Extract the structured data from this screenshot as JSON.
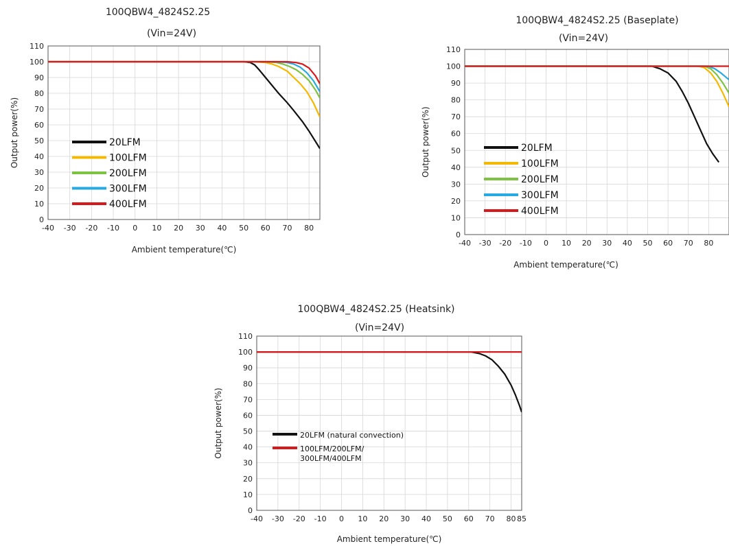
{
  "chart_data": [
    {
      "type": "line",
      "title": "100QBW4_4824S2.25",
      "subtitle": "(Vin=24V)",
      "xlabel": "Ambient temperature(℃)",
      "ylabel": "Output power(%)",
      "xlim": [
        -40,
        85
      ],
      "ylim": [
        0,
        110
      ],
      "xticks": [
        "-40",
        "-30",
        "-20",
        "-10",
        "0",
        "10",
        "20",
        "30",
        "40",
        "50",
        "60",
        "70",
        "80"
      ],
      "yticks": [
        "0",
        "10",
        "20",
        "30",
        "40",
        "50",
        "60",
        "70",
        "80",
        "90",
        "100",
        "110"
      ],
      "grid": true,
      "legend_position": "lower-left",
      "series": [
        {
          "name": "20LFM",
          "color": "#111111",
          "x": [
            -40,
            50,
            53,
            55,
            57,
            60,
            63,
            66,
            70,
            73,
            77,
            80,
            85
          ],
          "y": [
            100,
            100,
            99.5,
            98,
            95,
            90,
            85,
            80,
            74,
            69,
            62,
            56,
            45
          ]
        },
        {
          "name": "100LFM",
          "color": "#f5b800",
          "x": [
            -40,
            55,
            60,
            63,
            66,
            70,
            73,
            76,
            79,
            82,
            85
          ],
          "y": [
            100,
            100,
            99.5,
            98.5,
            97,
            94,
            90,
            86,
            81,
            74,
            65
          ]
        },
        {
          "name": "200LFM",
          "color": "#7dc242",
          "x": [
            -40,
            60,
            65,
            68,
            71,
            74,
            77,
            80,
            83,
            85
          ],
          "y": [
            100,
            100,
            99.5,
            98.5,
            97,
            95,
            92,
            88,
            82,
            77
          ]
        },
        {
          "name": "300LFM",
          "color": "#27a9e1",
          "x": [
            -40,
            65,
            70,
            73,
            76,
            79,
            82,
            85
          ],
          "y": [
            100,
            100,
            99.5,
            98.5,
            96.5,
            93,
            88,
            81
          ]
        },
        {
          "name": "400LFM",
          "color": "#d7191c",
          "x": [
            -40,
            70,
            74,
            77,
            80,
            83,
            85
          ],
          "y": [
            100,
            100,
            99.5,
            98.5,
            96,
            91,
            86
          ]
        }
      ]
    },
    {
      "type": "line",
      "title": "100QBW4_4824S2.25  (Baseplate)",
      "subtitle": "(Vin=24V)",
      "xlabel": "Ambient temperature(℃)",
      "ylabel": "Output power(%)",
      "xlim": [
        -40,
        90
      ],
      "ylim": [
        0,
        110
      ],
      "xticks": [
        "-40",
        "-30",
        "-20",
        "-10",
        "0",
        "10",
        "20",
        "30",
        "40",
        "50",
        "60",
        "70",
        "80"
      ],
      "yticks": [
        "0",
        "10",
        "20",
        "30",
        "40",
        "50",
        "60",
        "70",
        "80",
        "90",
        "100",
        "110"
      ],
      "grid": true,
      "legend_position": "lower-left",
      "series": [
        {
          "name": "20LFM",
          "color": "#111111",
          "x": [
            -40,
            52,
            56,
            60,
            64,
            67,
            70,
            73,
            76,
            79,
            82,
            85
          ],
          "y": [
            100,
            100,
            98.5,
            96,
            91,
            85,
            78,
            70,
            62,
            54,
            48,
            43
          ]
        },
        {
          "name": "100LFM",
          "color": "#f5b800",
          "x": [
            -40,
            75,
            78,
            81,
            84,
            87,
            90
          ],
          "y": [
            100,
            100,
            99,
            96,
            91,
            84,
            76
          ]
        },
        {
          "name": "200LFM",
          "color": "#7dc242",
          "x": [
            -40,
            78,
            81,
            84,
            87,
            90
          ],
          "y": [
            100,
            100,
            98.5,
            95,
            90,
            84
          ]
        },
        {
          "name": "300LFM",
          "color": "#27a9e1",
          "x": [
            -40,
            80,
            83,
            86,
            88,
            90
          ],
          "y": [
            100,
            100,
            98.5,
            96,
            94,
            92
          ]
        },
        {
          "name": "400LFM",
          "color": "#d7191c",
          "x": [
            -40,
            90
          ],
          "y": [
            100,
            100
          ]
        }
      ]
    },
    {
      "type": "line",
      "title": "100QBW4_4824S2.25 (Heatsink)",
      "subtitle": "(Vin=24V)",
      "xlabel": "Ambient temperature(℃)",
      "ylabel": "Output power(%)",
      "xlim": [
        -40,
        85
      ],
      "ylim": [
        0,
        110
      ],
      "xticks": [
        "-40",
        "-30",
        "-20",
        "-10",
        "0",
        "10",
        "20",
        "30",
        "40",
        "50",
        "60",
        "70",
        "80",
        "85"
      ],
      "yticks": [
        "0",
        "10",
        "20",
        "30",
        "40",
        "50",
        "60",
        "70",
        "80",
        "90",
        "100",
        "110"
      ],
      "grid": true,
      "legend_position": "lower-left",
      "series": [
        {
          "name": "20LFM (natural convection)",
          "color": "#111111",
          "x": [
            -40,
            61,
            65,
            68,
            71,
            74,
            77,
            80,
            82,
            84,
            85
          ],
          "y": [
            100,
            100,
            99,
            97.5,
            95,
            91,
            86,
            79,
            73,
            66,
            62
          ]
        },
        {
          "name": "100LFM/200LFM/\n300LFM/400LFM",
          "color": "#d7191c",
          "x": [
            -40,
            85
          ],
          "y": [
            100,
            100
          ]
        }
      ]
    }
  ]
}
